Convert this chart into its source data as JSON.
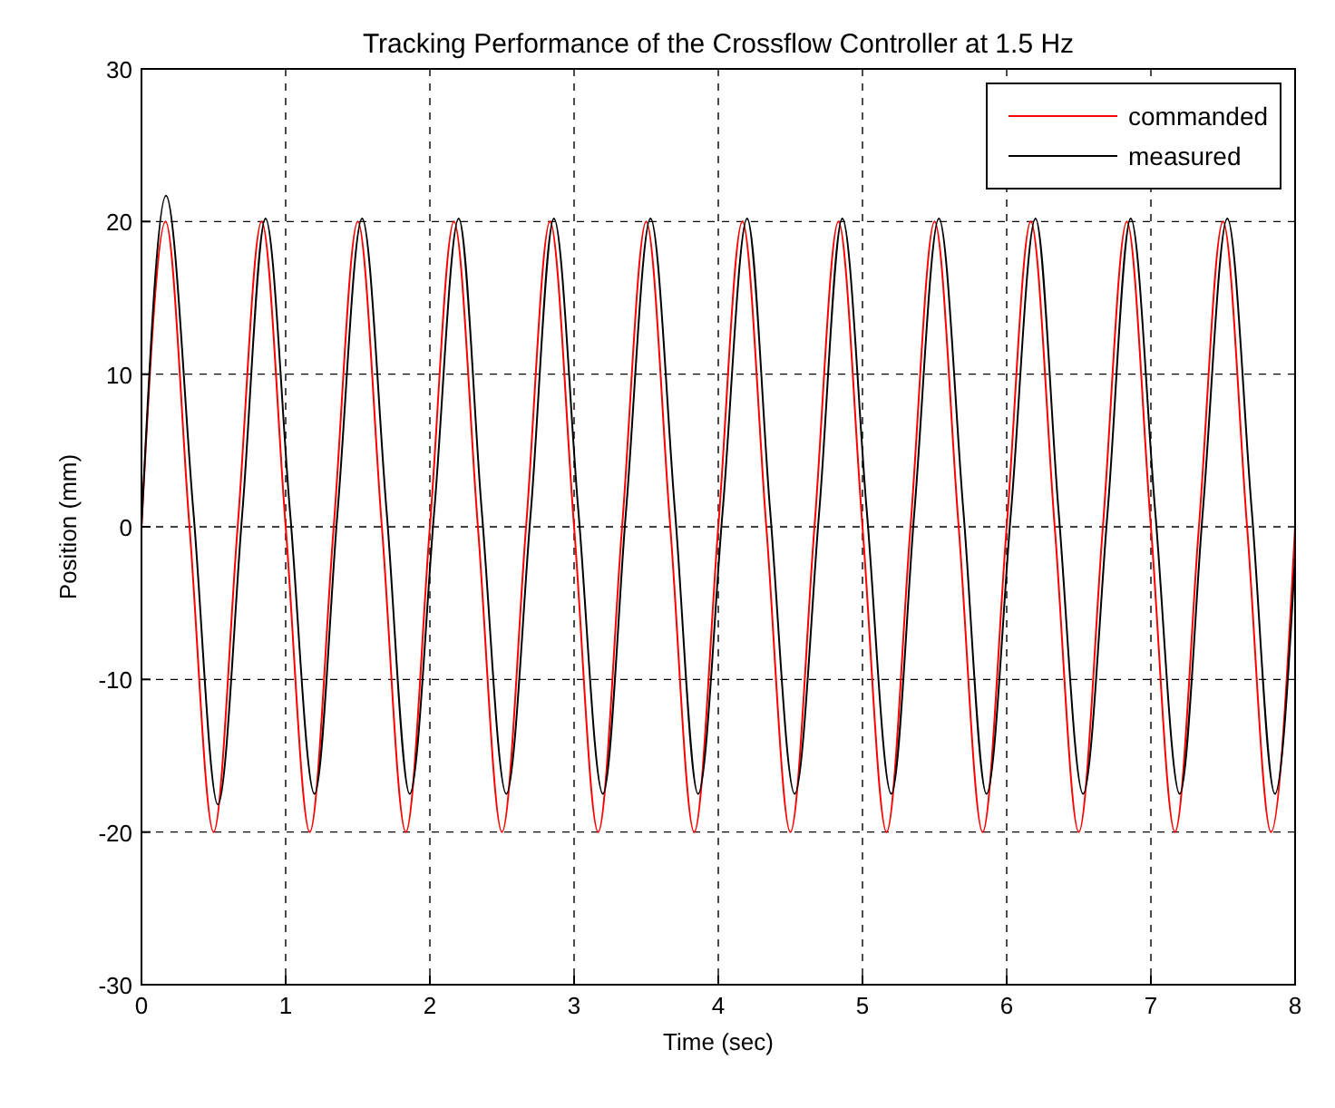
{
  "chart_data": {
    "type": "line",
    "title": "Tracking Performance of the Crossflow Controller at 1.5 Hz",
    "xlabel": "Time (sec)",
    "ylabel": "Position (mm)",
    "xlim": [
      0,
      8
    ],
    "ylim": [
      -30,
      30
    ],
    "xticks": [
      0,
      1,
      2,
      3,
      4,
      5,
      6,
      7,
      8
    ],
    "yticks": [
      -30,
      -20,
      -10,
      0,
      10,
      20,
      30
    ],
    "grid": true,
    "legend": "top right",
    "line_style": "solid",
    "series": [
      {
        "name": "commanded",
        "color": "#ff0000",
        "x": [
          0,
          0.167,
          0.333,
          0.5,
          0.667,
          0.833,
          1,
          1.167,
          1.333,
          1.5,
          1.667,
          1.833,
          2,
          2.167,
          2.333,
          2.5,
          2.667,
          2.833,
          3,
          3.167,
          3.333,
          3.5,
          3.667,
          3.833,
          4,
          4.167,
          4.333,
          4.5,
          4.667,
          4.833,
          5,
          5.167,
          5.333,
          5.5,
          5.667,
          5.833,
          6,
          6.167,
          6.333,
          6.5,
          6.667,
          6.833,
          7,
          7.167,
          7.333,
          7.5,
          7.667,
          7.833,
          8
        ],
        "values": [
          0,
          20,
          0,
          -20,
          0,
          20,
          0,
          -20,
          0,
          20,
          0,
          -20,
          0,
          20,
          0,
          -20,
          0,
          20,
          0,
          -20,
          0,
          20,
          0,
          -20,
          0,
          20,
          0,
          -20,
          0,
          20,
          0,
          -20,
          0,
          20,
          0,
          -20,
          0,
          20,
          0,
          -20,
          0,
          20,
          0,
          -20,
          0,
          20,
          0,
          -20,
          0
        ]
      },
      {
        "name": "measured",
        "color": "#000000",
        "x": [
          0,
          0.17,
          0.36,
          0.53,
          0.7,
          0.86,
          1.03,
          1.2,
          1.36,
          1.53,
          1.7,
          1.86,
          2.03,
          2.2,
          2.36,
          2.53,
          2.7,
          2.86,
          3.03,
          3.2,
          3.36,
          3.53,
          3.7,
          3.86,
          4.03,
          4.2,
          4.36,
          4.53,
          4.7,
          4.86,
          5.03,
          5.2,
          5.36,
          5.53,
          5.7,
          5.86,
          6.03,
          6.2,
          6.36,
          6.53,
          6.7,
          6.86,
          7.03,
          7.2,
          7.36,
          7.53,
          7.7,
          7.86,
          8
        ],
        "values": [
          0,
          21.7,
          1,
          -18.2,
          1,
          20.2,
          1,
          -17.5,
          1,
          20.2,
          1,
          -17.5,
          1,
          20.2,
          1,
          -17.5,
          1,
          20.2,
          1,
          -17.5,
          1,
          20.2,
          1,
          -17.5,
          1,
          20.2,
          1,
          -17.5,
          1,
          20.2,
          1,
          -17.5,
          1,
          20.2,
          1,
          -17.5,
          1,
          20.2,
          1,
          -17.5,
          1,
          20.2,
          1,
          -17.5,
          1,
          20.2,
          1,
          -17.5,
          -2
        ]
      }
    ]
  }
}
